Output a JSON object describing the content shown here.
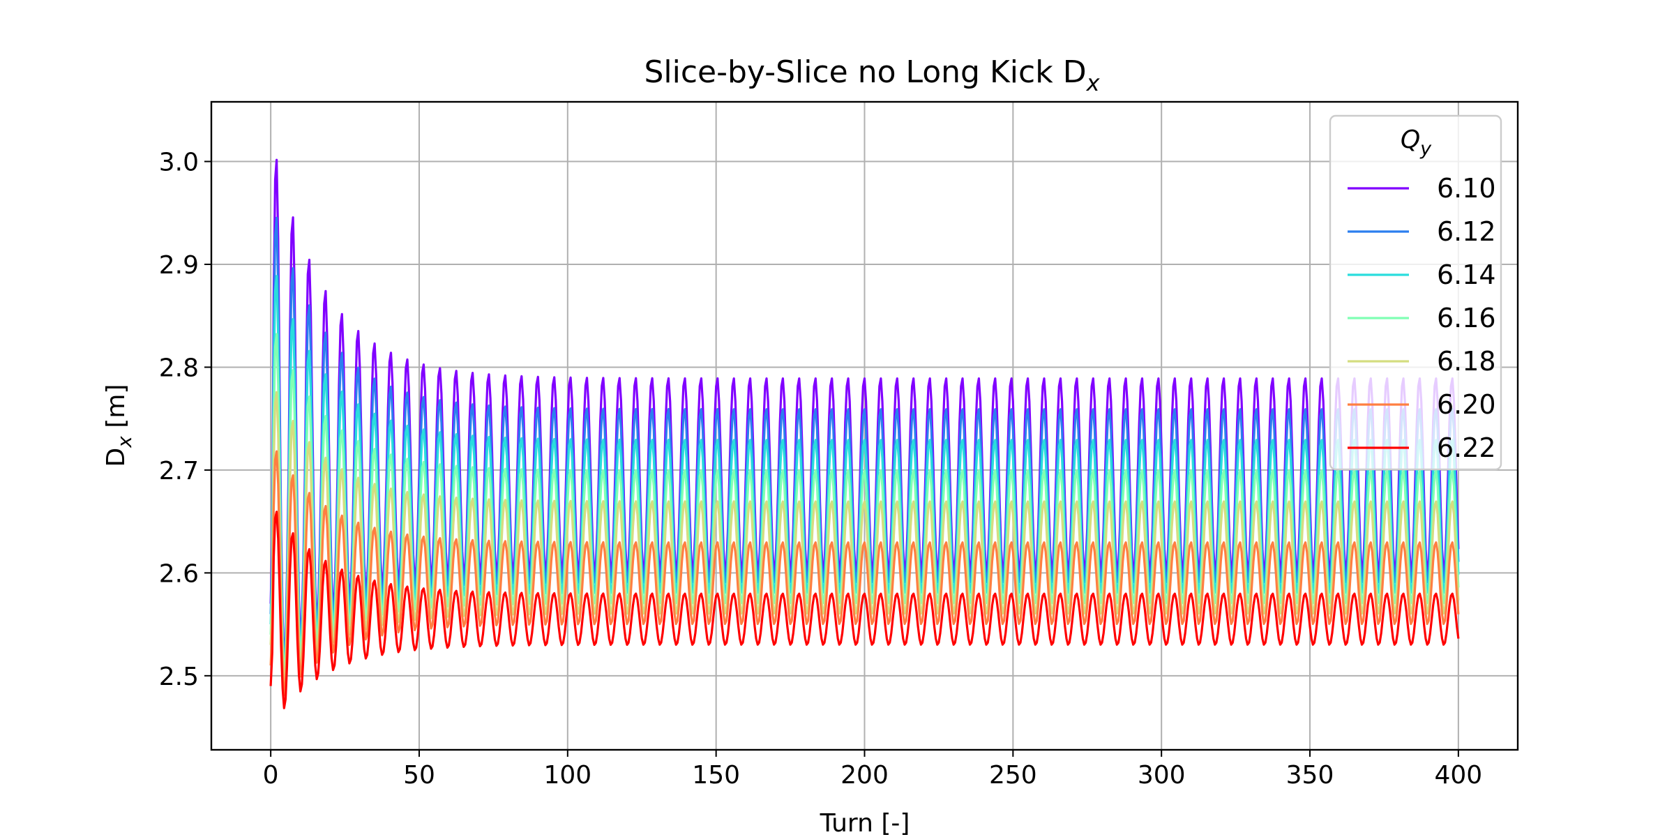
{
  "chart_data": {
    "type": "line",
    "title": "Slice-by-Slice no Long Kick D",
    "title_subscript": "x",
    "xlabel": "Turn [-]",
    "ylabel": "D",
    "ylabel_subscript": "x",
    "ylabel_unit": " [m]",
    "xlim": [
      -20,
      420
    ],
    "ylim": [
      2.428,
      3.058
    ],
    "xticks": [
      0,
      50,
      100,
      150,
      200,
      250,
      300,
      350,
      400
    ],
    "xtick_labels": [
      "0",
      "50",
      "100",
      "150",
      "200",
      "250",
      "300",
      "350",
      "400"
    ],
    "yticks": [
      2.5,
      2.6,
      2.7,
      2.8,
      2.9,
      3.0
    ],
    "ytick_labels": [
      "2.5",
      "2.6",
      "2.7",
      "2.8",
      "2.9",
      "3.0"
    ],
    "grid": true,
    "legend": {
      "title": "Q",
      "title_subscript": "y",
      "position": "top-right"
    },
    "x_range": [
      0,
      400
    ],
    "oscillation_period_turns": 5.5,
    "series": [
      {
        "name": "6.10",
        "color": "#8000ff",
        "start": 2.57,
        "first_peak": 3.03,
        "first_trough": 2.49,
        "settled_max": 2.79,
        "settled_min": 2.6
      },
      {
        "name": "6.12",
        "color": "#2c7fef",
        "start": 2.56,
        "first_peak": 2.97,
        "first_trough": 2.49,
        "settled_max": 2.76,
        "settled_min": 2.59
      },
      {
        "name": "6.14",
        "color": "#2adddd",
        "start": 2.55,
        "first_peak": 2.91,
        "first_trough": 2.48,
        "settled_max": 2.73,
        "settled_min": 2.58
      },
      {
        "name": "6.16",
        "color": "#80ffb4",
        "start": 2.54,
        "first_peak": 2.85,
        "first_trough": 2.48,
        "settled_max": 2.7,
        "settled_min": 2.57
      },
      {
        "name": "6.18",
        "color": "#d4dd80",
        "start": 2.53,
        "first_peak": 2.79,
        "first_trough": 2.47,
        "settled_max": 2.67,
        "settled_min": 2.56
      },
      {
        "name": "6.20",
        "color": "#ff7f41",
        "start": 2.51,
        "first_peak": 2.73,
        "first_trough": 2.46,
        "settled_max": 2.63,
        "settled_min": 2.55
      },
      {
        "name": "6.22",
        "color": "#ff0000",
        "start": 2.49,
        "first_peak": 2.67,
        "first_trough": 2.45,
        "settled_max": 2.58,
        "settled_min": 2.53
      }
    ]
  }
}
